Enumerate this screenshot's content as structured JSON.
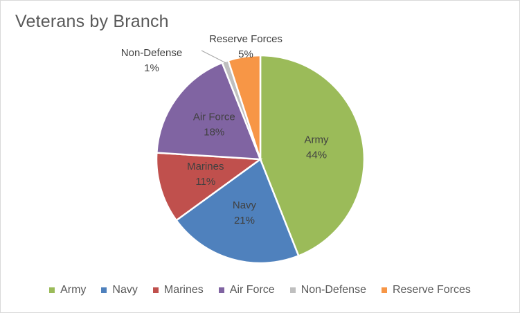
{
  "chart_data": {
    "type": "pie",
    "title": "Veterans by Branch",
    "categories": [
      "Army",
      "Navy",
      "Marines",
      "Air Force",
      "Non-Defense",
      "Reserve Forces"
    ],
    "values": [
      44,
      21,
      11,
      18,
      1,
      5
    ],
    "labels": [
      "44%",
      "21%",
      "11%",
      "18%",
      "1%",
      "5%"
    ],
    "colors": [
      "#9BBB59",
      "#4F81BD",
      "#C0504D",
      "#8064A2",
      "#BFBFBF",
      "#F79646"
    ],
    "legend_position": "bottom",
    "start_angle_deg": 0,
    "direction": "clockwise"
  }
}
